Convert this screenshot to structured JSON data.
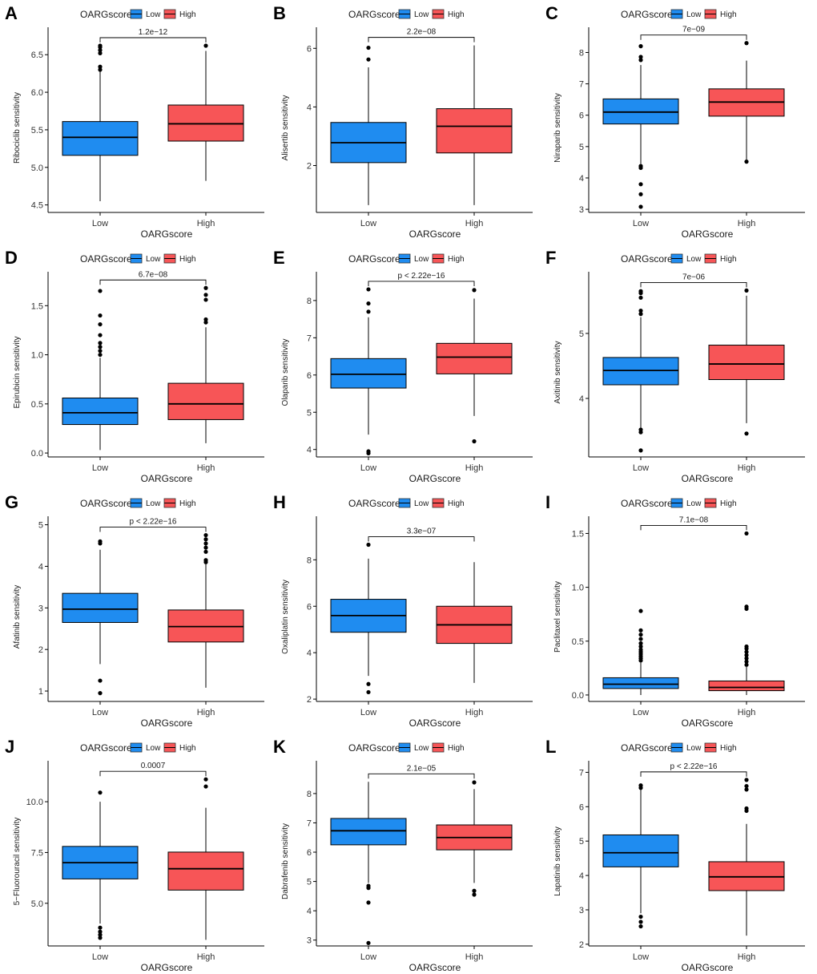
{
  "colors": {
    "low": "#1f8cf0",
    "high": "#f75557",
    "line": "#000000"
  },
  "legend": {
    "title": "OARGscore",
    "items": [
      "Low",
      "High"
    ]
  },
  "panel_labels": [
    "A",
    "B",
    "C",
    "D",
    "E",
    "F",
    "G",
    "H",
    "I",
    "J",
    "K",
    "L"
  ],
  "chart_data": [
    {
      "panel": "A",
      "type": "boxplot",
      "xlabel": "OARGscore",
      "ylabel": "Ribociclib sensitivity",
      "categories": [
        "Low",
        "High"
      ],
      "ylim": [
        4.4,
        6.78
      ],
      "yticks": [
        4.5,
        5.0,
        5.5,
        6.0,
        6.5
      ],
      "tick_labels": [
        "4.5",
        "5.0",
        "5.5",
        "6.0",
        "6.5"
      ],
      "pvalue": "1.2e−12",
      "groups": [
        {
          "name": "Low",
          "min": 4.55,
          "q1": 5.16,
          "median": 5.4,
          "q3": 5.61,
          "max": 6.29,
          "outliers": [
            6.3,
            6.34,
            6.52,
            6.56,
            6.6,
            6.62
          ]
        },
        {
          "name": "High",
          "min": 4.82,
          "q1": 5.35,
          "median": 5.58,
          "q3": 5.83,
          "max": 6.55,
          "outliers": [
            6.62
          ]
        }
      ]
    },
    {
      "panel": "B",
      "type": "boxplot",
      "xlabel": "OARGscore",
      "ylabel": "Alisertib sensitivity",
      "categories": [
        "Low",
        "High"
      ],
      "ylim": [
        0.4,
        6.5
      ],
      "yticks": [
        2,
        4,
        6
      ],
      "tick_labels": [
        "2",
        "4",
        "6"
      ],
      "pvalue": "2.2e−08",
      "groups": [
        {
          "name": "Low",
          "min": 0.65,
          "q1": 2.1,
          "median": 2.78,
          "q3": 3.47,
          "max": 5.35,
          "outliers": [
            5.62,
            6.02
          ]
        },
        {
          "name": "High",
          "min": 0.65,
          "q1": 2.43,
          "median": 3.34,
          "q3": 3.94,
          "max": 6.1,
          "outliers": []
        }
      ]
    },
    {
      "panel": "C",
      "type": "boxplot",
      "xlabel": "OARGscore",
      "ylabel": "Niraparib sensitivity",
      "categories": [
        "Low",
        "High"
      ],
      "ylim": [
        2.9,
        8.6
      ],
      "yticks": [
        3,
        4,
        5,
        6,
        7,
        8
      ],
      "tick_labels": [
        "3",
        "4",
        "5",
        "6",
        "7",
        "8"
      ],
      "pvalue": "7e−09",
      "groups": [
        {
          "name": "Low",
          "min": 4.45,
          "q1": 5.72,
          "median": 6.1,
          "q3": 6.52,
          "max": 7.6,
          "outliers": [
            3.08,
            3.48,
            3.8,
            4.32,
            4.38,
            7.76,
            7.86,
            8.2
          ]
        },
        {
          "name": "High",
          "min": 4.52,
          "q1": 5.97,
          "median": 6.42,
          "q3": 6.84,
          "max": 7.74,
          "outliers": [
            4.52,
            8.3
          ]
        }
      ]
    },
    {
      "panel": "D",
      "type": "boxplot",
      "xlabel": "OARGscore",
      "ylabel": "Epirubicin sensitivity",
      "categories": [
        "Low",
        "High"
      ],
      "ylim": [
        -0.04,
        1.78
      ],
      "yticks": [
        0.0,
        0.5,
        1.0,
        1.5
      ],
      "tick_labels": [
        "0.0",
        "0.5",
        "1.0",
        "1.5"
      ],
      "pvalue": "6.7e−08",
      "groups": [
        {
          "name": "Low",
          "min": 0.03,
          "q1": 0.29,
          "median": 0.41,
          "q3": 0.56,
          "max": 0.97,
          "outliers": [
            1.0,
            1.04,
            1.08,
            1.12,
            1.2,
            1.31,
            1.4,
            1.65
          ]
        },
        {
          "name": "High",
          "min": 0.1,
          "q1": 0.34,
          "median": 0.5,
          "q3": 0.71,
          "max": 1.28,
          "outliers": [
            1.33,
            1.36,
            1.56,
            1.61,
            1.68
          ]
        }
      ]
    },
    {
      "panel": "E",
      "type": "boxplot",
      "xlabel": "OARGscore",
      "ylabel": "Olaparib sensitivity",
      "categories": [
        "Low",
        "High"
      ],
      "ylim": [
        3.8,
        8.6
      ],
      "yticks": [
        4,
        5,
        6,
        7,
        8
      ],
      "tick_labels": [
        "4",
        "5",
        "6",
        "7",
        "8"
      ],
      "pvalue": "p < 2.22e−16",
      "groups": [
        {
          "name": "Low",
          "min": 4.4,
          "q1": 5.65,
          "median": 6.02,
          "q3": 6.44,
          "max": 7.55,
          "outliers": [
            3.9,
            3.95,
            7.7,
            7.92,
            8.3
          ]
        },
        {
          "name": "High",
          "min": 4.9,
          "q1": 6.03,
          "median": 6.48,
          "q3": 6.85,
          "max": 8.05,
          "outliers": [
            4.22,
            8.28
          ]
        }
      ]
    },
    {
      "panel": "F",
      "type": "boxplot",
      "xlabel": "OARGscore",
      "ylabel": "Axitinib sensitivity",
      "categories": [
        "Low",
        "High"
      ],
      "ylim": [
        3.1,
        5.85
      ],
      "yticks": [
        4,
        5
      ],
      "tick_labels": [
        "4",
        "5"
      ],
      "pvalue": "7e−06",
      "groups": [
        {
          "name": "Low",
          "min": 3.55,
          "q1": 4.21,
          "median": 4.43,
          "q3": 4.63,
          "max": 5.25,
          "outliers": [
            3.2,
            3.48,
            3.52,
            5.3,
            5.35,
            5.55,
            5.62,
            5.65
          ]
        },
        {
          "name": "High",
          "min": 3.62,
          "q1": 4.29,
          "median": 4.53,
          "q3": 4.82,
          "max": 5.58,
          "outliers": [
            3.46,
            5.66
          ]
        }
      ]
    },
    {
      "panel": "G",
      "type": "boxplot",
      "xlabel": "OARGscore",
      "ylabel": "Afatinib sensitivity",
      "categories": [
        "Low",
        "High"
      ],
      "ylim": [
        0.75,
        5.05
      ],
      "yticks": [
        1,
        2,
        3,
        4,
        5
      ],
      "tick_labels": [
        "1",
        "2",
        "3",
        "4",
        "5"
      ],
      "pvalue": "p < 2.22e−16",
      "groups": [
        {
          "name": "Low",
          "min": 1.65,
          "q1": 2.65,
          "median": 2.97,
          "q3": 3.35,
          "max": 4.4,
          "outliers": [
            0.95,
            1.25,
            4.55,
            4.6
          ]
        },
        {
          "name": "High",
          "min": 1.08,
          "q1": 2.18,
          "median": 2.55,
          "q3": 2.95,
          "max": 4.05,
          "outliers": [
            4.1,
            4.15,
            4.35,
            4.45,
            4.55,
            4.65,
            4.75
          ]
        }
      ]
    },
    {
      "panel": "H",
      "type": "boxplot",
      "xlabel": "OARGscore",
      "ylabel": "Oxaliplatin sensitivity",
      "categories": [
        "Low",
        "High"
      ],
      "ylim": [
        1.9,
        9.6
      ],
      "yticks": [
        2,
        4,
        6,
        8
      ],
      "tick_labels": [
        "2",
        "4",
        "6",
        "8"
      ],
      "pvalue": "3.3e−07",
      "groups": [
        {
          "name": "Low",
          "min": 3.0,
          "q1": 4.88,
          "median": 5.6,
          "q3": 6.3,
          "max": 8.05,
          "outliers": [
            2.3,
            2.65,
            8.65
          ]
        },
        {
          "name": "High",
          "min": 2.7,
          "q1": 4.4,
          "median": 5.2,
          "q3": 6.0,
          "max": 7.9,
          "outliers": []
        }
      ]
    },
    {
      "panel": "I",
      "type": "boxplot",
      "xlabel": "OARGscore",
      "ylabel": "Paclitaxel sensitivity",
      "categories": [
        "Low",
        "High"
      ],
      "ylim": [
        -0.06,
        1.6
      ],
      "yticks": [
        0.0,
        0.5,
        1.0,
        1.5
      ],
      "tick_labels": [
        "0.0",
        "0.5",
        "1.0",
        "1.5"
      ],
      "pvalue": "7.1e−08",
      "groups": [
        {
          "name": "Low",
          "min": 0.0,
          "q1": 0.06,
          "median": 0.1,
          "q3": 0.16,
          "max": 0.3,
          "outliers": [
            0.32,
            0.34,
            0.36,
            0.38,
            0.4,
            0.42,
            0.45,
            0.48,
            0.52,
            0.56,
            0.6,
            0.78
          ]
        },
        {
          "name": "High",
          "min": 0.0,
          "q1": 0.04,
          "median": 0.07,
          "q3": 0.13,
          "max": 0.26,
          "outliers": [
            0.28,
            0.31,
            0.34,
            0.37,
            0.4,
            0.43,
            0.45,
            0.8,
            0.82,
            1.5
          ]
        }
      ]
    },
    {
      "panel": "J",
      "type": "boxplot",
      "xlabel": "OARGscore",
      "ylabel": "5−Fluorouracil sensitivity",
      "categories": [
        "Low",
        "High"
      ],
      "ylim": [
        2.9,
        11.7
      ],
      "yticks": [
        5.0,
        7.5,
        10.0
      ],
      "tick_labels": [
        "5.0",
        "7.5",
        "10.0"
      ],
      "pvalue": "0.0007",
      "groups": [
        {
          "name": "Low",
          "min": 4.0,
          "q1": 6.2,
          "median": 7.0,
          "q3": 7.8,
          "max": 10.0,
          "outliers": [
            3.3,
            3.45,
            3.6,
            3.8,
            10.45
          ]
        },
        {
          "name": "High",
          "min": 3.2,
          "q1": 5.65,
          "median": 6.7,
          "q3": 7.52,
          "max": 9.7,
          "outliers": [
            10.75,
            11.1
          ]
        }
      ]
    },
    {
      "panel": "K",
      "type": "boxplot",
      "xlabel": "OARGscore",
      "ylabel": "Dabrafenib sensitivity",
      "categories": [
        "Low",
        "High"
      ],
      "ylim": [
        2.8,
        8.9
      ],
      "yticks": [
        3,
        4,
        5,
        6,
        7,
        8
      ],
      "tick_labels": [
        "3",
        "4",
        "5",
        "6",
        "7",
        "8"
      ],
      "pvalue": "2.1e−05",
      "groups": [
        {
          "name": "Low",
          "min": 4.95,
          "q1": 6.25,
          "median": 6.73,
          "q3": 7.15,
          "max": 8.4,
          "outliers": [
            2.9,
            4.28,
            4.78,
            4.85
          ]
        },
        {
          "name": "High",
          "min": 4.95,
          "q1": 6.08,
          "median": 6.5,
          "q3": 6.93,
          "max": 8.15,
          "outliers": [
            4.55,
            4.68,
            8.38
          ]
        }
      ]
    },
    {
      "panel": "L",
      "type": "boxplot",
      "xlabel": "OARGscore",
      "ylabel": "Lapatinib sensitivity",
      "categories": [
        "Low",
        "High"
      ],
      "ylim": [
        1.95,
        7.15
      ],
      "yticks": [
        2,
        3,
        4,
        5,
        6,
        7
      ],
      "tick_labels": [
        "2",
        "3",
        "4",
        "5",
        "6",
        "7"
      ],
      "pvalue": "p < 2.22e−16",
      "groups": [
        {
          "name": "Low",
          "min": 2.9,
          "q1": 4.25,
          "median": 4.66,
          "q3": 5.18,
          "max": 6.5,
          "outliers": [
            2.52,
            2.65,
            2.8,
            6.55,
            6.62
          ]
        },
        {
          "name": "High",
          "min": 2.25,
          "q1": 3.56,
          "median": 3.96,
          "q3": 4.4,
          "max": 5.5,
          "outliers": [
            5.88,
            5.95,
            6.5,
            6.6,
            6.78
          ]
        }
      ]
    }
  ]
}
